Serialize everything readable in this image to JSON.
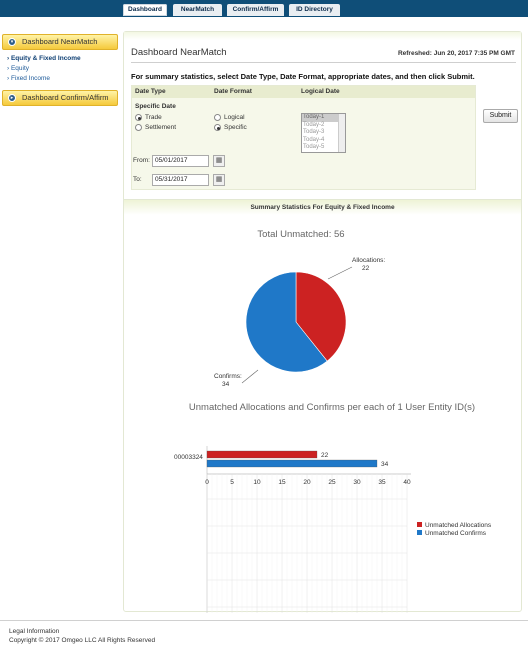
{
  "tabs": [
    {
      "label": "Dashboard",
      "active": true
    },
    {
      "label": "NearMatch",
      "active": false
    },
    {
      "label": "Confirm/Affirm",
      "active": false
    },
    {
      "label": "ID Directory",
      "active": false
    }
  ],
  "sidebar": {
    "section1": {
      "label": "Dashboard NearMatch",
      "icon": "collapse-icon"
    },
    "links": [
      {
        "label": "› Equity & Fixed Income",
        "active": true
      },
      {
        "label": "› Equity",
        "active": false
      },
      {
        "label": "› Fixed Income",
        "active": false
      }
    ],
    "section2": {
      "label": "Dashboard Confirm/Affirm",
      "icon": "expand-icon"
    }
  },
  "main": {
    "title": "Dashboard NearMatch",
    "refreshed": "Refreshed: Jun 20, 2017 7:35 PM GMT",
    "instructions": "For summary statistics, select Date Type, Date Format, appropriate dates, and then click Submit.",
    "form": {
      "col_date_type": "Date Type",
      "col_date_format": "Date Format",
      "col_logical_date": "Logical Date",
      "specific_date_label": "Specific Date",
      "date_type_options": [
        {
          "label": "Trade",
          "selected": true
        },
        {
          "label": "Settlement",
          "selected": false
        }
      ],
      "date_format_options": [
        {
          "label": "Logical",
          "selected": false
        },
        {
          "label": "Specific",
          "selected": true
        }
      ],
      "logical_options": [
        "Today-1",
        "Today-2",
        "Today-3",
        "Today-4",
        "Today-5"
      ],
      "from_label": "From:",
      "from_value": "05/01/2017",
      "to_label": "To:",
      "to_value": "05/31/2017",
      "calendar_icon": "calendar-icon",
      "submit_label": "Submit"
    },
    "stats_header": "Summary Statistics For Equity & Fixed Income"
  },
  "chart_data": [
    {
      "type": "pie",
      "title": "Total Unmatched: 56",
      "slices": [
        {
          "name": "Allocations",
          "value": 22,
          "color": "#cc2222",
          "label": "Allocations:",
          "value_label": "22"
        },
        {
          "name": "Confirms",
          "value": 34,
          "color": "#1f78c8",
          "label": "Confirms:",
          "value_label": "34"
        }
      ]
    },
    {
      "type": "bar",
      "orientation": "horizontal",
      "title": "Unmatched Allocations and Confirms per each of 1 User Entity ID(s)",
      "categories": [
        "00003324"
      ],
      "series": [
        {
          "name": "Unmatched Allocations",
          "values": [
            22
          ],
          "color": "#cc2222"
        },
        {
          "name": "Unmatched Confirms",
          "values": [
            34
          ],
          "color": "#1f78c8"
        }
      ],
      "xlim": [
        0,
        40
      ],
      "xticks": [
        "0",
        "5",
        "10",
        "15",
        "20",
        "25",
        "30",
        "35",
        "40"
      ],
      "grid": true,
      "legend": "right"
    }
  ],
  "footer": {
    "legal": "Legal Information",
    "copyright": "Copyright © 2017 Omgeo LLC All Rights Reserved"
  }
}
